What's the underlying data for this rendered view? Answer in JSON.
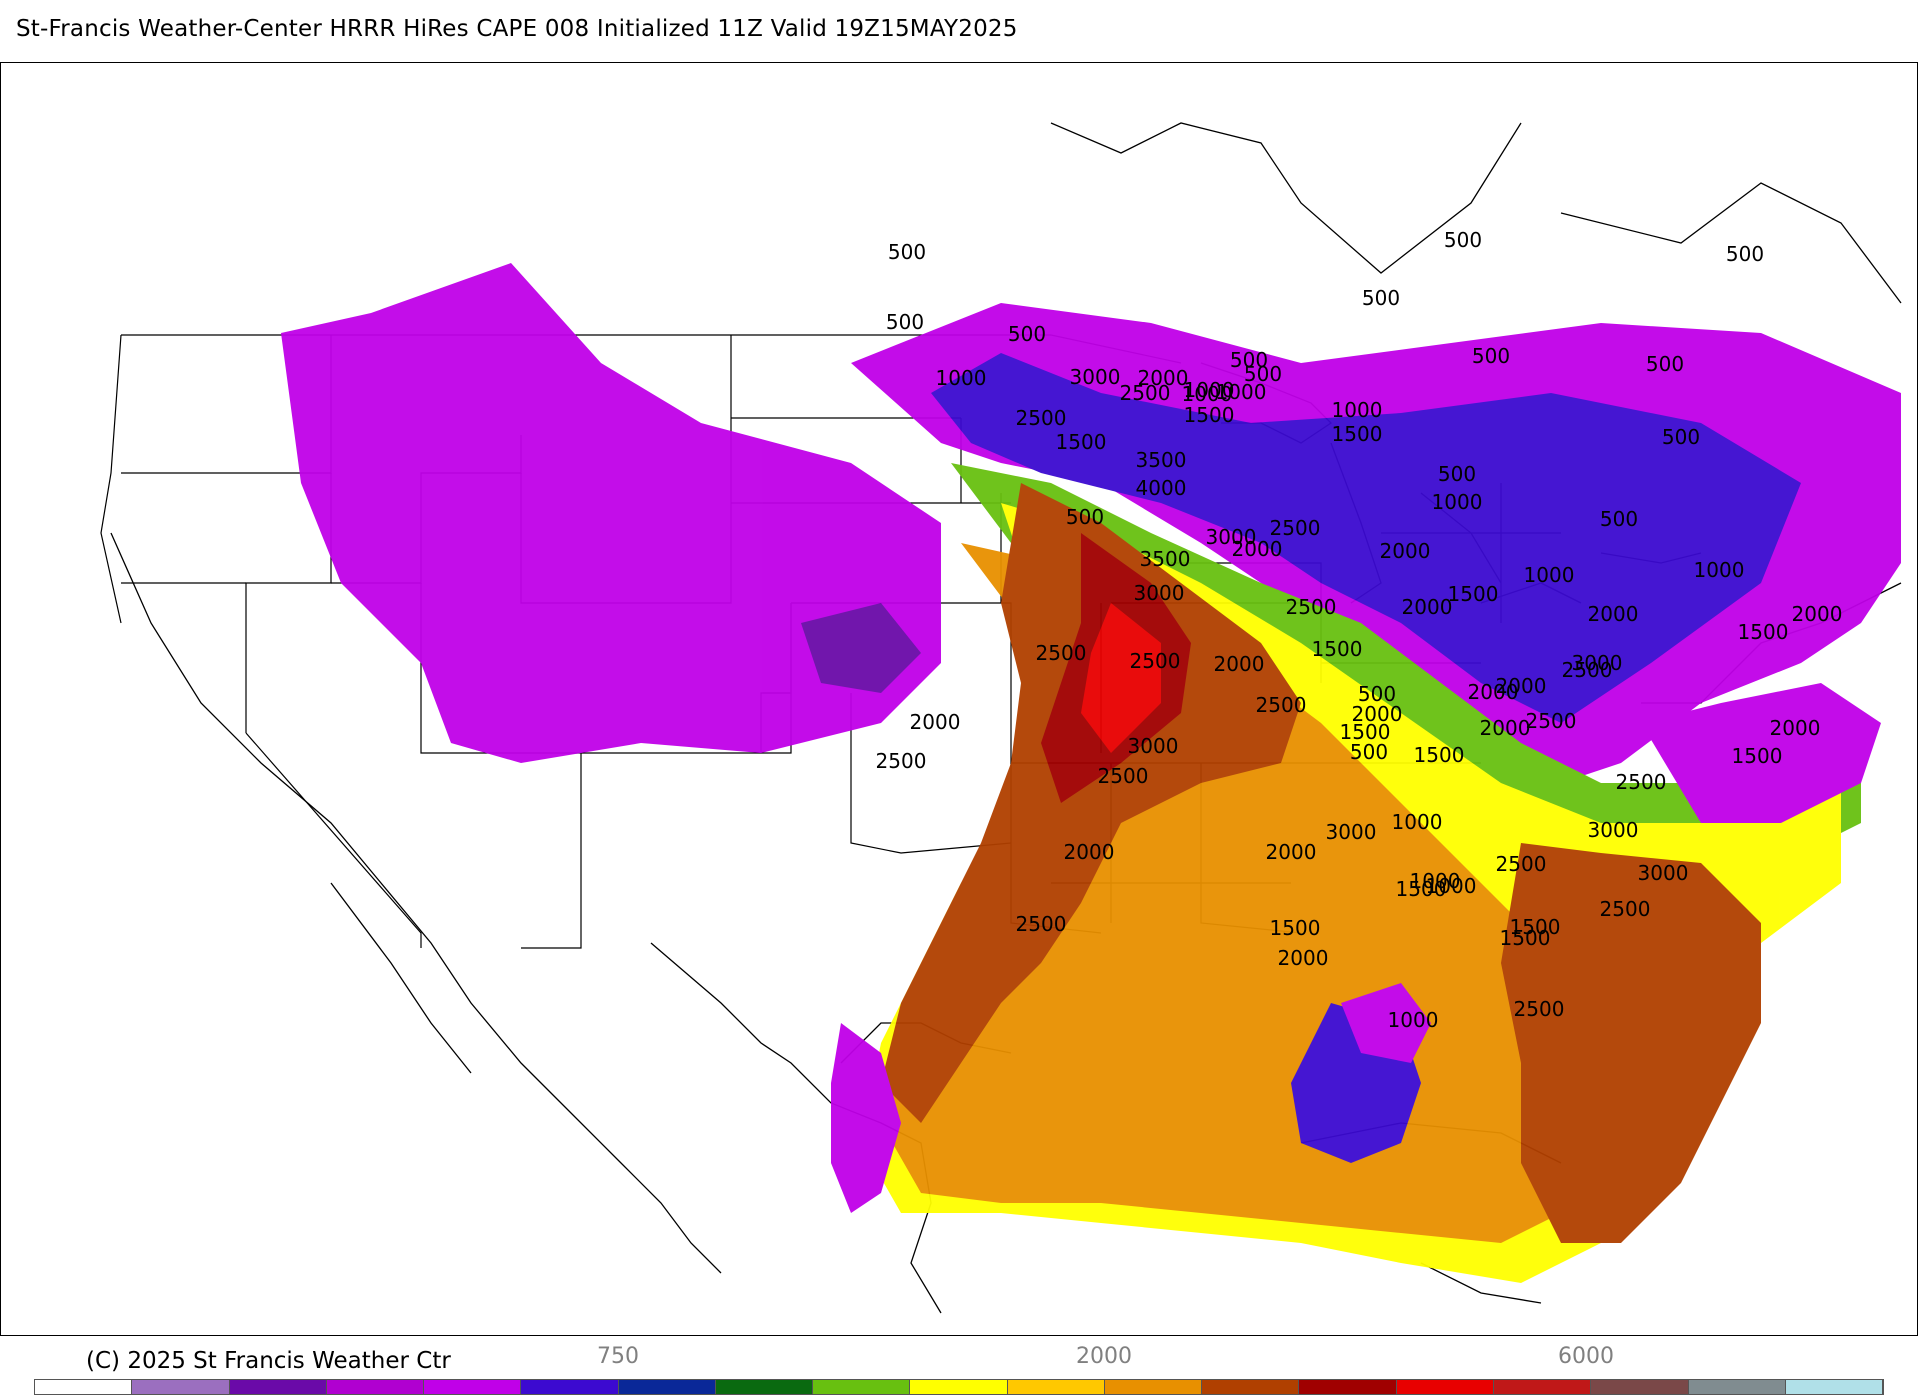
{
  "title": "St-Francis Weather-Center HRRR HiRes CAPE  008 Initialized  11Z Valid 19Z15MAY2025",
  "copyright": "(C) 2025 St Francis Weather Ctr",
  "colorbar": {
    "labels": [
      "750",
      "2000",
      "6000"
    ],
    "colors": [
      "#ffffff",
      "#9b6fbf",
      "#6a0aa8",
      "#b000d0",
      "#c000e8",
      "#3c0ad0",
      "#0a2898",
      "#0a6a10",
      "#68c010",
      "#ffff00",
      "#ffc800",
      "#e89000",
      "#b04000",
      "#a00000",
      "#e80000",
      "#c01818",
      "#7a4848",
      "#808c90",
      "#b0e0e8"
    ]
  },
  "contour_labels": [
    "500",
    "500",
    "500",
    "500",
    "500",
    "500",
    "500",
    "500",
    "500",
    "500",
    "500",
    "500",
    "500",
    "500",
    "500",
    "500",
    "1000",
    "1000",
    "1000",
    "1000",
    "1000",
    "1000",
    "1000",
    "1000",
    "1000",
    "1000",
    "1000",
    "1000",
    "1500",
    "1500",
    "1500",
    "1500",
    "1500",
    "1500",
    "1500",
    "1500",
    "1500",
    "1500",
    "1500",
    "1500",
    "1500",
    "2000",
    "2000",
    "2000",
    "2000",
    "2000",
    "2000",
    "2000",
    "2000",
    "2000",
    "2000",
    "2000",
    "2000",
    "2000",
    "2000",
    "2000",
    "2000",
    "2500",
    "2500",
    "2500",
    "2500",
    "2500",
    "2500",
    "2500",
    "2500",
    "2500",
    "2500",
    "2500",
    "2500",
    "2500",
    "2500",
    "2500",
    "2500",
    "3000",
    "3000",
    "3000",
    "3000",
    "3000",
    "3000",
    "3000",
    "3000",
    "3500",
    "3500",
    "4000"
  ],
  "colors": {
    "frame": "#000000",
    "coastline": "#000000",
    "background": "#ffffff"
  }
}
